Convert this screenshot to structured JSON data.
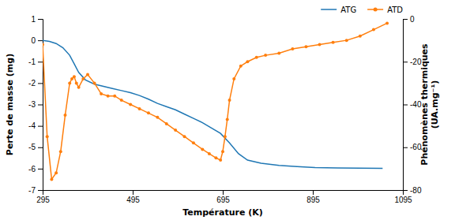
{
  "chart_data": {
    "type": "line",
    "x_label": "Température (K)",
    "y_label": "Perte de masse (mg)",
    "y2_label": "Phénomènes thermiques\n(UA.mg⁻¹)",
    "xlim": [
      295,
      1095
    ],
    "ylim": [
      -7,
      1
    ],
    "y2lim": [
      -80,
      0
    ],
    "xticks": [
      295,
      495,
      695,
      895,
      1095
    ],
    "yticks": [
      -7,
      -6,
      -5,
      -4,
      -3,
      -2,
      -1,
      0,
      1
    ],
    "y2ticks": [
      -80,
      -60,
      -40,
      -20,
      0
    ],
    "grid": false,
    "legend": "upper right",
    "series": [
      {
        "name": "ATG",
        "axis": "y",
        "x": [
          295,
          310,
          325,
          340,
          355,
          365,
          375,
          390,
          410,
          430,
          450,
          470,
          490,
          510,
          530,
          550,
          570,
          590,
          610,
          630,
          650,
          670,
          690,
          710,
          730,
          750,
          780,
          820,
          860,
          900,
          950,
          1000,
          1050
        ],
        "values": [
          0,
          -0.05,
          -0.15,
          -0.35,
          -0.7,
          -1.1,
          -1.5,
          -1.85,
          -2.05,
          -2.15,
          -2.25,
          -2.35,
          -2.45,
          -2.58,
          -2.75,
          -2.95,
          -3.1,
          -3.25,
          -3.45,
          -3.65,
          -3.85,
          -4.1,
          -4.35,
          -4.8,
          -5.3,
          -5.6,
          -5.75,
          -5.85,
          -5.9,
          -5.95,
          -5.97,
          -5.98,
          -5.99
        ]
      },
      {
        "name": "ATD",
        "axis": "y2",
        "marker": "circle",
        "x": [
          295,
          305,
          315,
          325,
          335,
          345,
          355,
          360,
          365,
          370,
          375,
          385,
          395,
          410,
          425,
          440,
          455,
          470,
          490,
          510,
          530,
          550,
          570,
          590,
          610,
          630,
          650,
          665,
          680,
          690,
          695,
          700,
          705,
          710,
          720,
          735,
          750,
          770,
          790,
          820,
          850,
          880,
          910,
          940,
          970,
          1000,
          1030,
          1060
        ],
        "values": [
          -12,
          -55,
          -75,
          -72,
          -62,
          -45,
          -30,
          -28,
          -27,
          -30,
          -32,
          -28,
          -26,
          -30,
          -35,
          -36,
          -36,
          -38,
          -40,
          -42,
          -44,
          -46,
          -49,
          -52,
          -55,
          -58,
          -61,
          -63,
          -65,
          -66,
          -62,
          -55,
          -47,
          -38,
          -28,
          -22,
          -20,
          -18,
          -17,
          -16,
          -14,
          -13,
          -12,
          -11,
          -10,
          -8,
          -5,
          -2
        ]
      }
    ]
  }
}
